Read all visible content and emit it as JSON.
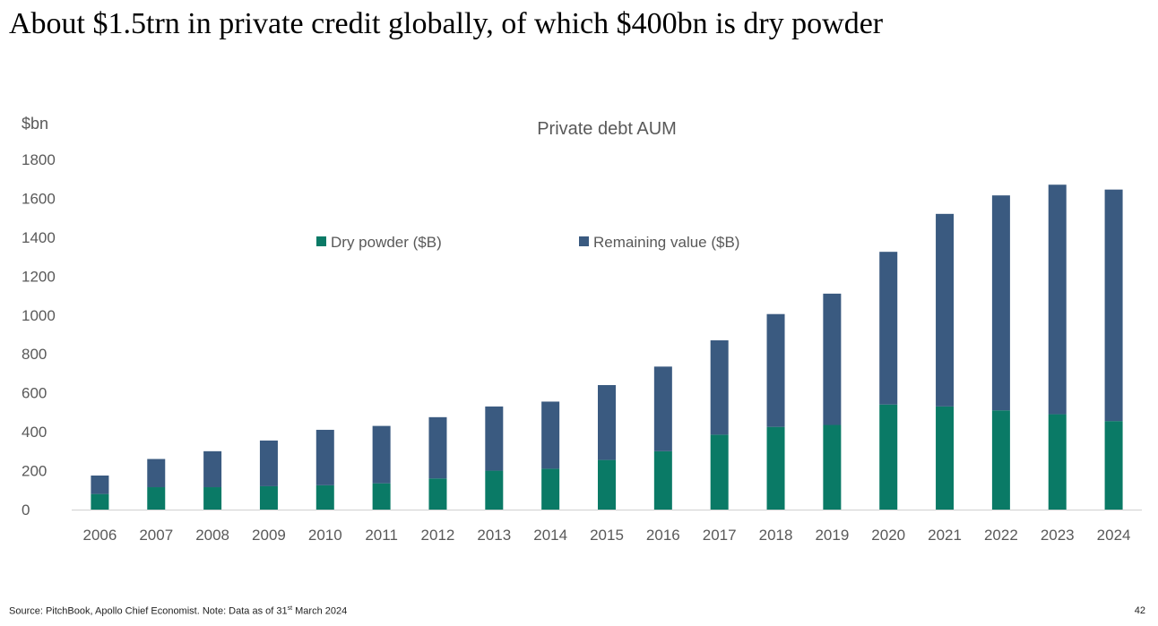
{
  "slide_title": "About $1.5trn in private credit globally, of which $400bn is dry powder",
  "footer": {
    "source_prefix": "Source: PitchBook, Apollo Chief Economist. Note: Data as of 31",
    "source_sup": "st",
    "source_suffix": " March 2024"
  },
  "page_number": "42",
  "colors": {
    "dry_powder": "#0a7a66",
    "remaining_value": "#3a5a80",
    "axis_text": "#595959",
    "axis_line": "#d0d0d0"
  },
  "chart_data": {
    "type": "bar",
    "stacked": true,
    "title": "Private debt AUM",
    "ylabel": "$bn",
    "xlabel": "",
    "ylim": [
      0,
      1800
    ],
    "yticks": [
      0,
      200,
      400,
      600,
      800,
      1000,
      1200,
      1400,
      1600,
      1800
    ],
    "grid": false,
    "legend_position": "top-center",
    "categories": [
      "2006",
      "2007",
      "2008",
      "2009",
      "2010",
      "2011",
      "2012",
      "2013",
      "2014",
      "2015",
      "2016",
      "2017",
      "2018",
      "2019",
      "2020",
      "2021",
      "2022",
      "2023",
      "2024"
    ],
    "series": [
      {
        "name": "Dry powder ($B)",
        "color_key": "dry_powder",
        "values": [
          80,
          115,
          115,
          120,
          125,
          135,
          160,
          200,
          210,
          255,
          300,
          385,
          425,
          435,
          540,
          530,
          510,
          490,
          455
        ]
      },
      {
        "name": "Remaining value ($B)",
        "color_key": "remaining_value",
        "values": [
          95,
          145,
          185,
          235,
          285,
          295,
          315,
          330,
          345,
          385,
          435,
          485,
          580,
          675,
          785,
          990,
          1105,
          1180,
          1190
        ]
      }
    ]
  }
}
